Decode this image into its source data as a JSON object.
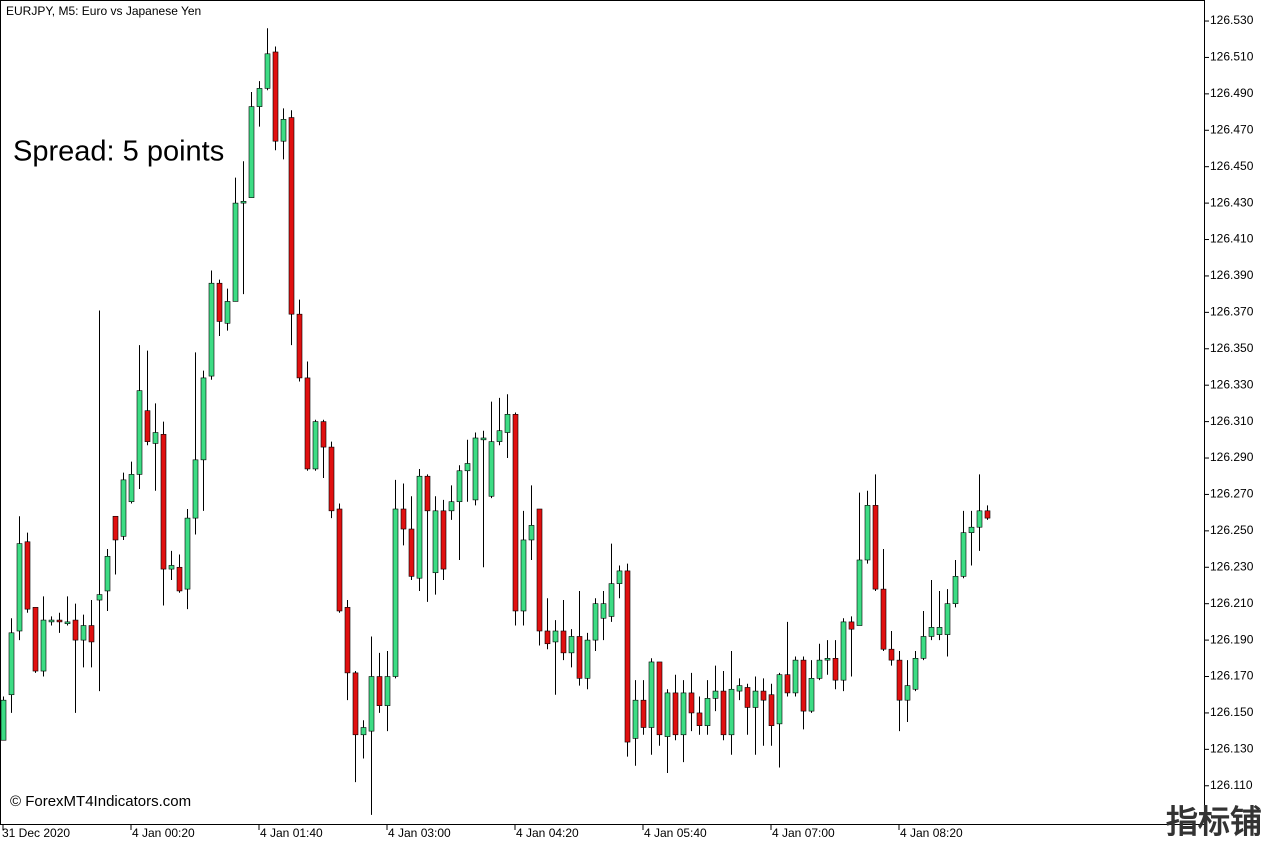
{
  "chart_data": {
    "type": "candlestick",
    "title": "EURJPY, M5:  Euro vs Japanese Yen",
    "annotations": [
      "Spread: 5 points"
    ],
    "watermark": "© ForexMT4Indicators.com",
    "logo": "指标铺",
    "up_color": "#3ddc84",
    "down_color": "#e01010",
    "wick_color": "#000000",
    "categories": [
      "31 Dec 2020",
      null,
      null,
      null,
      null,
      null,
      null,
      null,
      null,
      null,
      null,
      null,
      null,
      null,
      null,
      null,
      "4 Jan 00:20",
      null,
      null,
      null,
      null,
      null,
      null,
      null,
      null,
      null,
      null,
      null,
      null,
      null,
      null,
      null,
      "4 Jan 01:40",
      null,
      null,
      null,
      null,
      null,
      null,
      null,
      null,
      null,
      null,
      null,
      null,
      null,
      null,
      null,
      "4 Jan 03:00",
      null,
      null,
      null,
      null,
      null,
      null,
      null,
      null,
      null,
      null,
      null,
      null,
      null,
      null,
      null,
      "4 Jan 04:20",
      null,
      null,
      null,
      null,
      null,
      null,
      null,
      null,
      null,
      null,
      null,
      null,
      null,
      null,
      null,
      "4 Jan 05:40",
      null,
      null,
      null,
      null,
      null,
      null,
      null,
      null,
      null,
      null,
      null,
      null,
      null,
      null,
      null,
      "4 Jan 07:00",
      null,
      null,
      null,
      null,
      null,
      null,
      null,
      null,
      null,
      null,
      null,
      null,
      null,
      null,
      null,
      "4 Jan 08:20",
      null,
      null,
      null,
      null,
      null,
      null,
      null,
      null,
      null,
      null,
      null
    ],
    "open": [
      126.135,
      126.16,
      126.195,
      126.244,
      126.208,
      126.173,
      126.2,
      126.201,
      126.199,
      126.201,
      126.19,
      126.198,
      126.212,
      126.217,
      126.258,
      126.247,
      126.266,
      126.281,
      126.316,
      126.298,
      126.303,
      126.229,
      126.23,
      126.218,
      126.257,
      126.289,
      126.335,
      126.386,
      126.364,
      126.376,
      126.43,
      126.433,
      126.483,
      126.493,
      126.513,
      126.464,
      126.477,
      126.369,
      126.334,
      126.284,
      126.31,
      126.296,
      126.262,
      126.208,
      126.172,
      126.138,
      126.14,
      126.17,
      126.154,
      126.17,
      126.262,
      126.251,
      126.224,
      126.28,
      126.227,
      126.261,
      126.261,
      126.266,
      126.283,
      126.267,
      126.3,
      126.269,
      126.299,
      126.304,
      126.314,
      126.206,
      126.245,
      126.262,
      126.195,
      126.189,
      126.195,
      126.183,
      126.192,
      126.169,
      126.19,
      126.202,
      126.203,
      126.221,
      126.228,
      126.136,
      126.157,
      126.142,
      126.178,
      126.137,
      126.161,
      126.138,
      126.161,
      126.15,
      126.143,
      126.158,
      126.162,
      126.138,
      126.162,
      126.164,
      126.153,
      126.162,
      126.16,
      126.144,
      126.171,
      126.161,
      126.179,
      126.151,
      126.169,
      126.179,
      126.18,
      126.168,
      126.2,
      126.198,
      126.234,
      126.264,
      126.218,
      126.185,
      126.179,
      126.157,
      126.163,
      126.18,
      126.192,
      126.193,
      126.193,
      126.21,
      126.225,
      126.249,
      126.252,
      126.261
    ],
    "high": [
      126.159,
      126.202,
      126.258,
      126.249,
      126.208,
      126.214,
      126.203,
      126.205,
      126.214,
      126.21,
      126.204,
      126.212,
      126.371,
      126.24,
      126.258,
      126.282,
      126.288,
      126.352,
      126.349,
      126.32,
      126.31,
      126.239,
      126.237,
      126.262,
      126.348,
      126.338,
      126.393,
      126.388,
      126.383,
      126.444,
      126.453,
      126.491,
      126.497,
      126.526,
      126.516,
      126.482,
      126.481,
      126.377,
      126.343,
      126.311,
      126.311,
      126.299,
      126.265,
      126.212,
      126.173,
      126.146,
      126.192,
      126.183,
      126.184,
      126.278,
      126.276,
      126.269,
      126.284,
      126.281,
      126.269,
      126.267,
      126.275,
      126.286,
      126.3,
      126.304,
      126.305,
      126.321,
      126.323,
      126.325,
      126.315,
      126.261,
      126.275,
      126.262,
      126.213,
      126.201,
      126.212,
      126.196,
      126.217,
      126.194,
      126.213,
      126.217,
      126.243,
      126.231,
      126.232,
      126.168,
      126.168,
      126.18,
      126.178,
      126.163,
      126.171,
      126.168,
      126.172,
      126.159,
      126.168,
      126.176,
      126.173,
      126.184,
      126.169,
      126.166,
      126.17,
      126.169,
      126.166,
      126.172,
      126.2,
      126.181,
      126.181,
      126.179,
      126.188,
      126.19,
      126.19,
      126.202,
      126.203,
      126.271,
      126.272,
      126.281,
      126.24,
      126.195,
      126.184,
      126.179,
      126.184,
      126.206,
      126.223,
      126.217,
      126.218,
      126.234,
      126.261,
      126.261,
      126.281,
      126.264
    ],
    "low": [
      126.135,
      126.15,
      126.19,
      126.205,
      126.172,
      126.17,
      126.198,
      126.194,
      126.198,
      126.15,
      126.175,
      126.175,
      126.162,
      126.206,
      126.226,
      126.245,
      126.265,
      126.273,
      126.297,
      126.272,
      126.209,
      126.223,
      126.216,
      126.207,
      126.248,
      126.261,
      126.333,
      126.357,
      126.36,
      126.376,
      126.38,
      126.433,
      126.472,
      126.492,
      126.459,
      126.454,
      126.352,
      126.332,
      126.283,
      126.283,
      126.279,
      126.257,
      126.205,
      126.157,
      126.112,
      126.125,
      126.094,
      126.15,
      126.14,
      126.169,
      126.242,
      126.223,
      126.217,
      126.211,
      126.215,
      126.223,
      126.256,
      126.234,
      126.266,
      126.264,
      126.23,
      126.268,
      126.297,
      126.29,
      126.198,
      126.198,
      126.234,
      126.187,
      126.185,
      126.16,
      126.179,
      126.175,
      126.165,
      126.163,
      126.184,
      126.19,
      126.2,
      126.213,
      126.126,
      126.121,
      126.138,
      126.127,
      126.132,
      126.117,
      126.135,
      126.123,
      126.14,
      126.138,
      126.138,
      126.151,
      126.135,
      126.127,
      126.157,
      126.138,
      126.127,
      126.132,
      126.132,
      126.12,
      126.159,
      126.159,
      126.141,
      126.15,
      126.168,
      126.171,
      126.163,
      126.162,
      126.17,
      126.198,
      126.232,
      126.217,
      126.184,
      126.176,
      126.14,
      126.145,
      126.162,
      126.179,
      126.19,
      126.19,
      126.181,
      126.208,
      126.224,
      126.231,
      126.239,
      126.256
    ],
    "close": [
      126.157,
      126.194,
      126.243,
      126.207,
      126.173,
      126.201,
      126.201,
      126.2,
      126.2,
      126.19,
      126.198,
      126.189,
      126.215,
      126.236,
      126.245,
      126.278,
      126.281,
      126.327,
      126.299,
      126.304,
      126.229,
      126.231,
      126.217,
      126.257,
      126.289,
      126.334,
      126.386,
      126.365,
      126.376,
      126.43,
      126.431,
      126.483,
      126.493,
      126.512,
      126.464,
      126.476,
      126.369,
      126.334,
      126.284,
      126.31,
      126.296,
      126.261,
      126.206,
      126.172,
      126.138,
      126.142,
      126.17,
      126.154,
      126.17,
      126.262,
      126.251,
      126.225,
      126.28,
      126.261,
      126.261,
      126.229,
      126.266,
      126.283,
      126.287,
      126.301,
      126.301,
      126.299,
      126.305,
      126.314,
      126.206,
      126.245,
      126.253,
      126.195,
      126.188,
      126.195,
      126.183,
      126.192,
      126.169,
      126.19,
      126.21,
      126.21,
      126.221,
      126.228,
      126.134,
      126.157,
      126.142,
      126.178,
      126.138,
      126.161,
      126.138,
      126.161,
      126.15,
      126.143,
      126.158,
      126.162,
      126.138,
      126.163,
      126.165,
      126.153,
      126.162,
      126.157,
      126.143,
      126.171,
      126.161,
      126.179,
      126.151,
      126.169,
      126.179,
      126.18,
      126.168,
      126.2,
      126.196,
      126.234,
      126.264,
      126.218,
      126.185,
      126.179,
      126.157,
      126.165,
      126.18,
      126.192,
      126.197,
      126.197,
      126.21,
      126.225,
      126.249,
      126.252,
      126.261,
      126.257
    ],
    "ylim": [
      126.089,
      126.541
    ],
    "yticks": [
      {
        "value": 126.53,
        "label": "126.530"
      },
      {
        "value": 126.51,
        "label": "126.510"
      },
      {
        "value": 126.49,
        "label": "126.490"
      },
      {
        "value": 126.47,
        "label": "126.470"
      },
      {
        "value": 126.45,
        "label": "126.450"
      },
      {
        "value": 126.43,
        "label": "126.430"
      },
      {
        "value": 126.41,
        "label": "126.410"
      },
      {
        "value": 126.39,
        "label": "126.390"
      },
      {
        "value": 126.37,
        "label": "126.370"
      },
      {
        "value": 126.35,
        "label": "126.350"
      },
      {
        "value": 126.33,
        "label": "126.330"
      },
      {
        "value": 126.31,
        "label": "126.310"
      },
      {
        "value": 126.29,
        "label": "126.290"
      },
      {
        "value": 126.27,
        "label": "126.270"
      },
      {
        "value": 126.25,
        "label": "126.250"
      },
      {
        "value": 126.23,
        "label": "126.230"
      },
      {
        "value": 126.21,
        "label": "126.210"
      },
      {
        "value": 126.19,
        "label": "126.190"
      },
      {
        "value": 126.17,
        "label": "126.170"
      },
      {
        "value": 126.15,
        "label": "126.150"
      },
      {
        "value": 126.13,
        "label": "126.130"
      },
      {
        "value": 126.11,
        "label": "126.110"
      }
    ],
    "grid": false
  }
}
